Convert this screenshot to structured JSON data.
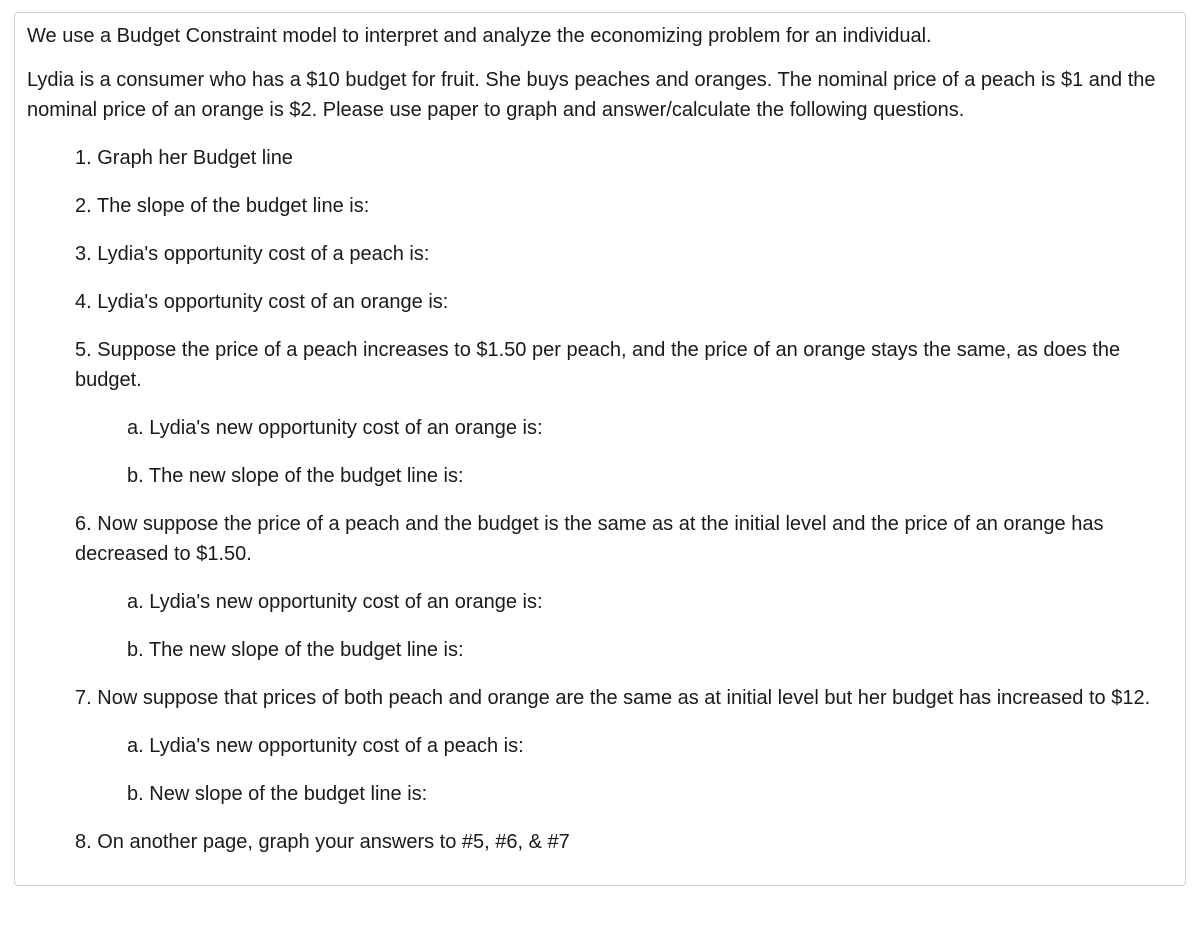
{
  "document": {
    "background_color": "#ffffff",
    "text_color": "#1a1a1a",
    "border_color": "#d0d0d0",
    "font_family": "Helvetica Neue, Helvetica, Arial, sans-serif",
    "font_size_pt": 15,
    "intro": "We use a Budget Constraint model to interpret and analyze the economizing problem for an individual.",
    "setup": "Lydia is a consumer who has a $10 budget for fruit. She buys peaches and oranges. The nominal price of a peach is $1 and the nominal price of an orange is $2. Please use paper to graph and answer/calculate the following questions.",
    "questions": {
      "q1": {
        "num": "1.",
        "text": "Graph her Budget line"
      },
      "q2": {
        "num": "2.",
        "text": "The slope of the budget line is:"
      },
      "q3": {
        "num": "3.",
        "text": "Lydia's opportunity cost of a peach is:"
      },
      "q4": {
        "num": "4.",
        "text": "Lydia's opportunity cost of an orange is:"
      },
      "q5": {
        "num": "5.",
        "text": "Suppose the price of a peach increases to $1.50 per peach, and the price of an orange stays the same, as does the budget.",
        "sub": {
          "a": {
            "num": "a.",
            "text": "Lydia's new opportunity cost of an orange is:"
          },
          "b": {
            "num": "b.",
            "text": "The new slope of the budget line is:"
          }
        }
      },
      "q6": {
        "num": "6.",
        "text": "Now suppose the price of a peach and the budget is the same as at the initial level and the price of an orange has decreased to $1.50.",
        "sub": {
          "a": {
            "num": "a.",
            "text": "Lydia's new opportunity cost of an orange is:"
          },
          "b": {
            "num": "b.",
            "text": "The new slope of the budget line is:"
          }
        }
      },
      "q7": {
        "num": "7.",
        "text": "Now suppose that prices of both peach and orange are the same as at initial level but her budget has increased to $12.",
        "sub": {
          "a": {
            "num": "a.",
            "text": "Lydia's new opportunity cost of a peach is:"
          },
          "b": {
            "num": "b.",
            "text": "New slope of the budget line is:"
          }
        }
      },
      "q8": {
        "num": "8.",
        "text": "On another page, graph your answers to #5, #6, & #7"
      }
    }
  }
}
